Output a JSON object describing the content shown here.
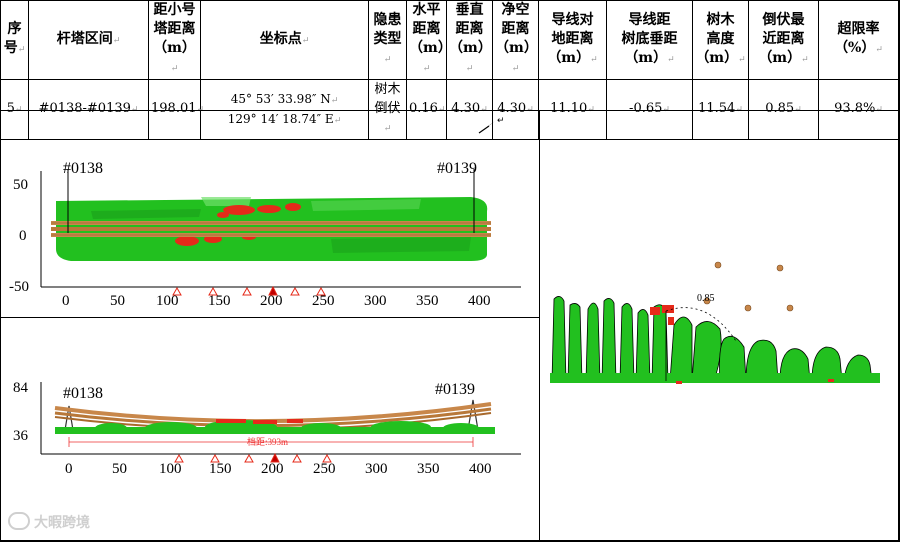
{
  "table": {
    "headers": [
      {
        "lines": [
          "序",
          "号"
        ]
      },
      {
        "lines": [
          "杆塔区间"
        ]
      },
      {
        "lines": [
          "距小号",
          "塔距离",
          "（m）"
        ]
      },
      {
        "lines": [
          "坐标点"
        ]
      },
      {
        "lines": [
          "隐患",
          "类型"
        ]
      },
      {
        "lines": [
          "水平",
          "距离",
          "（m）"
        ]
      },
      {
        "lines": [
          "垂直",
          "距离",
          "（m）"
        ]
      },
      {
        "lines": [
          "净空",
          "距离",
          "（m）"
        ]
      },
      {
        "lines": [
          "导线对",
          "地距离",
          "（m）"
        ]
      },
      {
        "lines": [
          "导线距",
          "树底垂距",
          "（m）"
        ]
      },
      {
        "lines": [
          "树木",
          "高度",
          "（m）"
        ]
      },
      {
        "lines": [
          "倒伏最",
          "近距离",
          "（m）"
        ]
      },
      {
        "lines": [
          "超限率",
          "（%）"
        ]
      }
    ],
    "row": {
      "index": "5",
      "span": "#0138-#0139",
      "dist_small_tower": "198.01",
      "coord_n": "45° 53′ 33.98″ N",
      "coord_e": "129° 14′ 18.74″ E",
      "hazard_type": "树木倒伏",
      "horizontal": "0.16",
      "vertical": "4.30",
      "clearance": "4.30",
      "ground": "11.10",
      "tree_base": "-0.65",
      "tree_height": "11.54",
      "fall_nearest": "0.85",
      "over_rate": "93.8%"
    }
  },
  "plan_view": {
    "tower_left": "#0138",
    "tower_right": "#0139",
    "y_ticks": [
      "50",
      "0",
      "-50"
    ],
    "x_ticks": [
      "0",
      "50",
      "100",
      "150",
      "200",
      "250",
      "300",
      "350",
      "400"
    ]
  },
  "profile_view": {
    "tower_left": "#0138",
    "tower_right": "#0139",
    "y_ticks": [
      "84",
      "36"
    ],
    "x_ticks": [
      "0",
      "50",
      "100",
      "150",
      "200",
      "250",
      "300",
      "350",
      "400"
    ],
    "span_label": "档距:393m"
  },
  "side_view": {
    "distance_label": "0.85"
  },
  "colors": {
    "vegetation": "#22c01f",
    "hazard": "#e52a1a",
    "conductor": "#c8874a",
    "span_line": "#ee3333"
  },
  "watermark": "大暇跨境"
}
